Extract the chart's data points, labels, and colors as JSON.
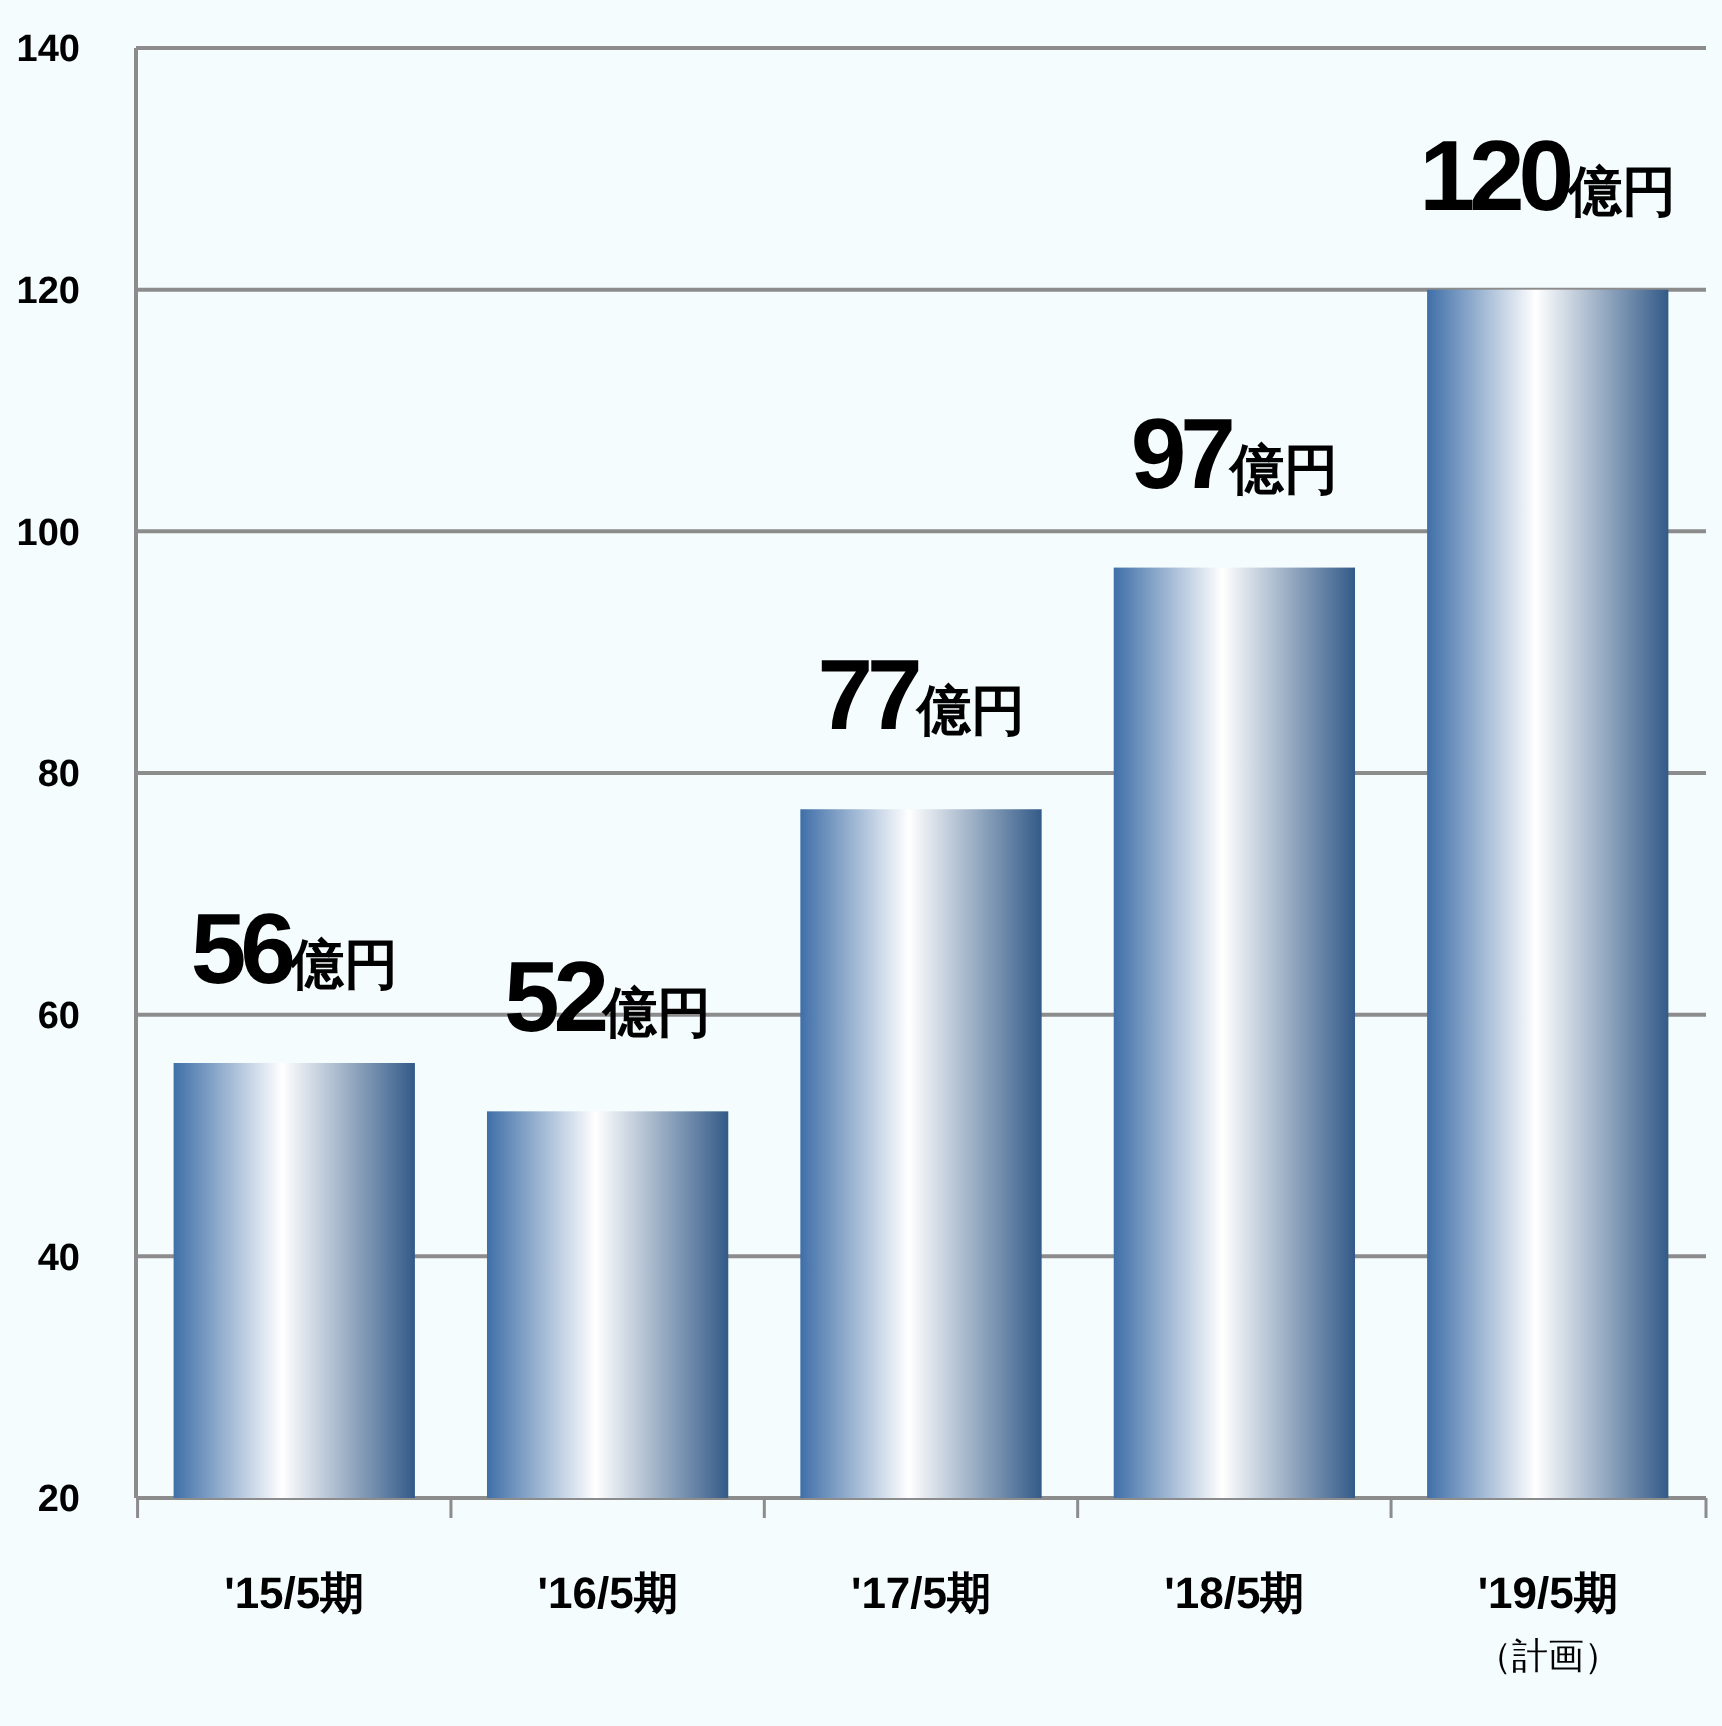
{
  "chart_data": {
    "type": "bar",
    "categories": [
      "'15/5期",
      "'16/5期",
      "'17/5期",
      "'18/5期",
      "'19/5期（計画）"
    ],
    "values": [
      56,
      52,
      77,
      97,
      120
    ],
    "value_labels": [
      "56億円",
      "52億円",
      "77億円",
      "97億円",
      "120億円"
    ],
    "color": "#3f6fa8",
    "ylim": [
      20,
      140
    ],
    "yticks": [
      20,
      40,
      60,
      80,
      100,
      120,
      140
    ],
    "grid": "y"
  }
}
